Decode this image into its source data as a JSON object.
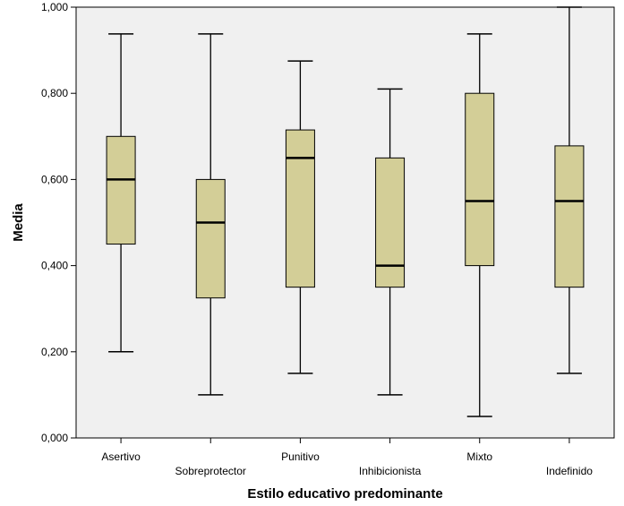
{
  "chart_data": {
    "type": "boxplot",
    "xlabel": "Estilo educativo predominante",
    "ylabel": "Media",
    "ylim": [
      0,
      1
    ],
    "yticks": [
      {
        "value": 0.0,
        "label": "0,000"
      },
      {
        "value": 0.2,
        "label": "0,200"
      },
      {
        "value": 0.4,
        "label": "0,400"
      },
      {
        "value": 0.6,
        "label": "0,600"
      },
      {
        "value": 0.8,
        "label": "0,800"
      },
      {
        "value": 1.0,
        "label": "1,000"
      }
    ],
    "grid": false,
    "categories": [
      "Asertivo",
      "Sobreprotector",
      "Punitivo",
      "Inhibicionista",
      "Mixto",
      "Indefinido"
    ],
    "label_rows": [
      0,
      1,
      0,
      1,
      0,
      1
    ],
    "boxes": [
      {
        "category": "Asertivo",
        "min": 0.2,
        "q1": 0.45,
        "median": 0.6,
        "q3": 0.7,
        "max": 0.938
      },
      {
        "category": "Sobreprotector",
        "min": 0.1,
        "q1": 0.325,
        "median": 0.5,
        "q3": 0.6,
        "max": 0.938
      },
      {
        "category": "Punitivo",
        "min": 0.15,
        "q1": 0.35,
        "median": 0.65,
        "q3": 0.715,
        "max": 0.875
      },
      {
        "category": "Inhibicionista",
        "min": 0.1,
        "q1": 0.35,
        "median": 0.4,
        "q3": 0.65,
        "max": 0.81
      },
      {
        "category": "Mixto",
        "min": 0.05,
        "q1": 0.4,
        "median": 0.55,
        "q3": 0.8,
        "max": 0.938
      },
      {
        "category": "Indefinido",
        "min": 0.15,
        "q1": 0.35,
        "median": 0.55,
        "q3": 0.678,
        "max": 1.0
      }
    ],
    "colors": {
      "plot_background": "#f0f0f0",
      "box_fill": "#d3ce97",
      "stroke": "#000000"
    }
  }
}
